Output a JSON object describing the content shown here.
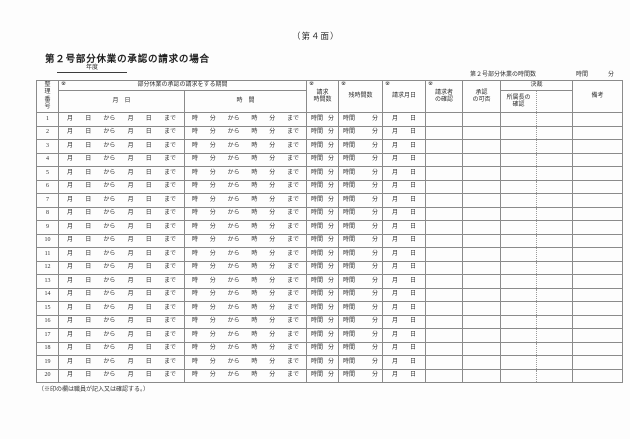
{
  "page": {
    "face_label": "（第４面）",
    "title": "第２号部分休業の承認の請求の場合",
    "year_label": "年度",
    "summary": {
      "label": "第２号部分休業の時間数",
      "hours_unit": "時間",
      "minutes_unit": "分"
    },
    "footnote": "（※印の欄は職員が記入又は確認する。）"
  },
  "table": {
    "mark": "※",
    "headers": {
      "seq": "整\n理\n番\n号",
      "period_group": "部分休業の承認の請求をする期間",
      "period_date": "月　日",
      "period_time": "時　間",
      "request_hours": "請求\n時間数",
      "remaining_hours": "残時間数",
      "request_date": "請求月日",
      "requester_confirm": "請求者\nの確認",
      "approval": "承認\nの可否",
      "decision_group": "決裁",
      "supervisor_confirm": "所属長の\n確認",
      "remarks": "備考"
    },
    "row_tokens": {
      "date": [
        "月",
        "日",
        "から",
        "月",
        "日",
        "まで"
      ],
      "time": [
        "時",
        "分",
        "から",
        "時",
        "分",
        "まで"
      ],
      "request_hours": [
        "時間",
        "分"
      ],
      "remaining_hours": [
        "時間",
        "分"
      ],
      "request_date": [
        "月",
        "日"
      ]
    },
    "rows": [
      1,
      2,
      3,
      4,
      5,
      6,
      7,
      8,
      9,
      10,
      11,
      12,
      13,
      14,
      15,
      16,
      17,
      18,
      19,
      20
    ]
  }
}
